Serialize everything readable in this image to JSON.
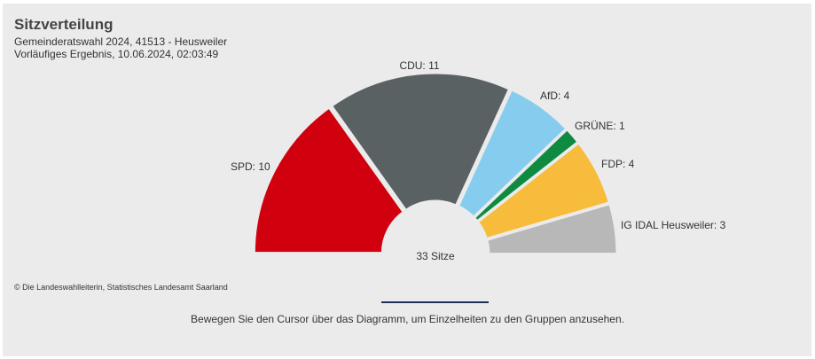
{
  "title": "Sitzverteilung",
  "subtitle_line1": "Gemeinderatswahl 2024, 41513 - Heusweiler",
  "subtitle_line2": "Vorläufiges Ergebnis, 10.06.2024, 02:03:49",
  "center_label": "33 Sitze",
  "credit": "© Die Landeswahlleiterin, Statistisches Landesamt Saarland",
  "hint": "Bewegen Sie den Cursor über das Diagramm, um Einzelheiten zu den Gruppen anzusehen.",
  "chart_data": {
    "type": "pie",
    "variant": "semicircle",
    "total_seats": 33,
    "series": [
      {
        "name": "SPD",
        "label": "SPD: 10",
        "value": 10,
        "color": "#d0000f"
      },
      {
        "name": "CDU",
        "label": "CDU: 11",
        "value": 11,
        "color": "#5a6163"
      },
      {
        "name": "AfD",
        "label": "AfD: 4",
        "value": 4,
        "color": "#86ccee"
      },
      {
        "name": "GRÜNE",
        "label": "GRÜNE: 1",
        "value": 1,
        "color": "#0e8a41"
      },
      {
        "name": "FDP",
        "label": "FDP: 4",
        "value": 4,
        "color": "#f8bc3c"
      },
      {
        "name": "IG IDAL Heusweiler",
        "label": "IG IDAL Heusweiler: 3",
        "value": 3,
        "color": "#b8b8b8"
      }
    ]
  }
}
